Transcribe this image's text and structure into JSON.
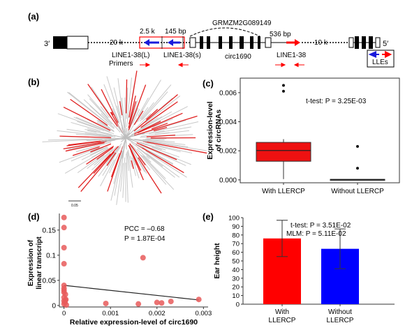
{
  "panels": {
    "a": "(a)",
    "b": "(b)",
    "c": "(c)",
    "d": "(d)",
    "e": "(e)"
  },
  "gene_model": {
    "end3": "3′",
    "end5": "5′",
    "dist_20k": "20 k",
    "dist_2_5k": "2.5 k",
    "dist_145bp": "145 bp",
    "gene_name": "GRMZM2G089149",
    "dist_536bp": "536 bp",
    "dist_10k": "10 k",
    "line_L": "LINE1-38(L)",
    "line_S": "LINE1-38(s)",
    "circ": "circ1690",
    "line_R": "LINE1-38",
    "primers": "Primers",
    "legend": "LLEs"
  },
  "tree": {
    "scale_label": "0.05"
  },
  "chart_data": [
    {
      "type": "box",
      "panel": "c",
      "ylabel": "Expression-level of circRNAs",
      "ylabel_lines": [
        "Expression-level",
        "of circRNAs"
      ],
      "categories": [
        "With LLERCP",
        "Without LLERCP"
      ],
      "yticks": [
        "0.000",
        "0.002",
        "0.004",
        "0.006"
      ],
      "ylim": [
        -0.0002,
        0.007
      ],
      "boxes": [
        {
          "name": "With LLERCP",
          "q1": 0.00128,
          "median": 0.00202,
          "q3": 0.00258,
          "whisker_low": 5e-05,
          "whisker_high": 0.0028,
          "outliers": [
            0.0065,
            0.0061
          ],
          "color": "#ee1111"
        },
        {
          "name": "Without LLERCP",
          "q1": 0.0,
          "median": 2e-05,
          "q3": 4e-05,
          "whisker_low": 0.0,
          "whisker_high": 5e-05,
          "outliers": [
            0.0023,
            0.0008
          ],
          "color": "#ee1111"
        }
      ],
      "annotation": "t-test: P = 3.25E-03"
    },
    {
      "type": "scatter",
      "panel": "d",
      "xlabel": "Relative expression-level of circ1690",
      "ylabel": "Expression of linear transcript",
      "ylabel_lines": [
        "Expression of",
        "linear transcript"
      ],
      "xticks": [
        "0",
        "0.001",
        "0.002",
        "0.003"
      ],
      "yticks": [
        "0",
        "0.05",
        "0.1",
        "0.15"
      ],
      "xlim": [
        -0.0001,
        0.0031
      ],
      "ylim": [
        -0.003,
        0.183
      ],
      "points": [
        [
          0.0,
          0.175
        ],
        [
          0.0,
          0.155
        ],
        [
          0.0,
          0.115
        ],
        [
          0.0,
          0.083
        ],
        [
          0.0,
          0.04
        ],
        [
          0.0,
          0.034
        ],
        [
          0.0,
          0.03
        ],
        [
          0.0,
          0.026
        ],
        [
          3e-05,
          0.022
        ],
        [
          0.0,
          0.016
        ],
        [
          4e-05,
          0.012
        ],
        [
          0.0,
          0.009
        ],
        [
          2e-05,
          0.006
        ],
        [
          0.0,
          0.003
        ],
        [
          5e-05,
          0.001
        ],
        [
          3e-05,
          0.01
        ],
        [
          0.0009,
          0.004
        ],
        [
          0.0017,
          0.095
        ],
        [
          0.0016,
          0.003
        ],
        [
          0.002,
          0.006
        ],
        [
          0.0021,
          0.005
        ],
        [
          0.0023,
          0.008
        ],
        [
          0.0029,
          0.012
        ]
      ],
      "fit": {
        "x": [
          0.0,
          0.0029
        ],
        "y": [
          0.04,
          0.011
        ]
      },
      "annotation_pcc": "PCC = –0.68",
      "annotation_p": "P = 1.87E-04",
      "point_color": "#e85a5a"
    },
    {
      "type": "bar",
      "panel": "e",
      "ylabel": "Ear height",
      "categories": [
        "With LLERCP",
        "Without LLERCP"
      ],
      "category_lines": [
        [
          "With",
          "LLERCP"
        ],
        [
          "Without",
          "LLERCP"
        ]
      ],
      "values": [
        76,
        64
      ],
      "errors": [
        21,
        23
      ],
      "colors": [
        "#ff0000",
        "#0000ff"
      ],
      "yticks": [
        "0",
        "10",
        "20",
        "30",
        "40",
        "50",
        "60",
        "70",
        "80",
        "90",
        "100"
      ],
      "ylim": [
        0,
        100
      ],
      "annotation_ttest": "t-test: P = 3.51E-02",
      "annotation_mlm": "MLM: P = 5.11E-02"
    }
  ]
}
